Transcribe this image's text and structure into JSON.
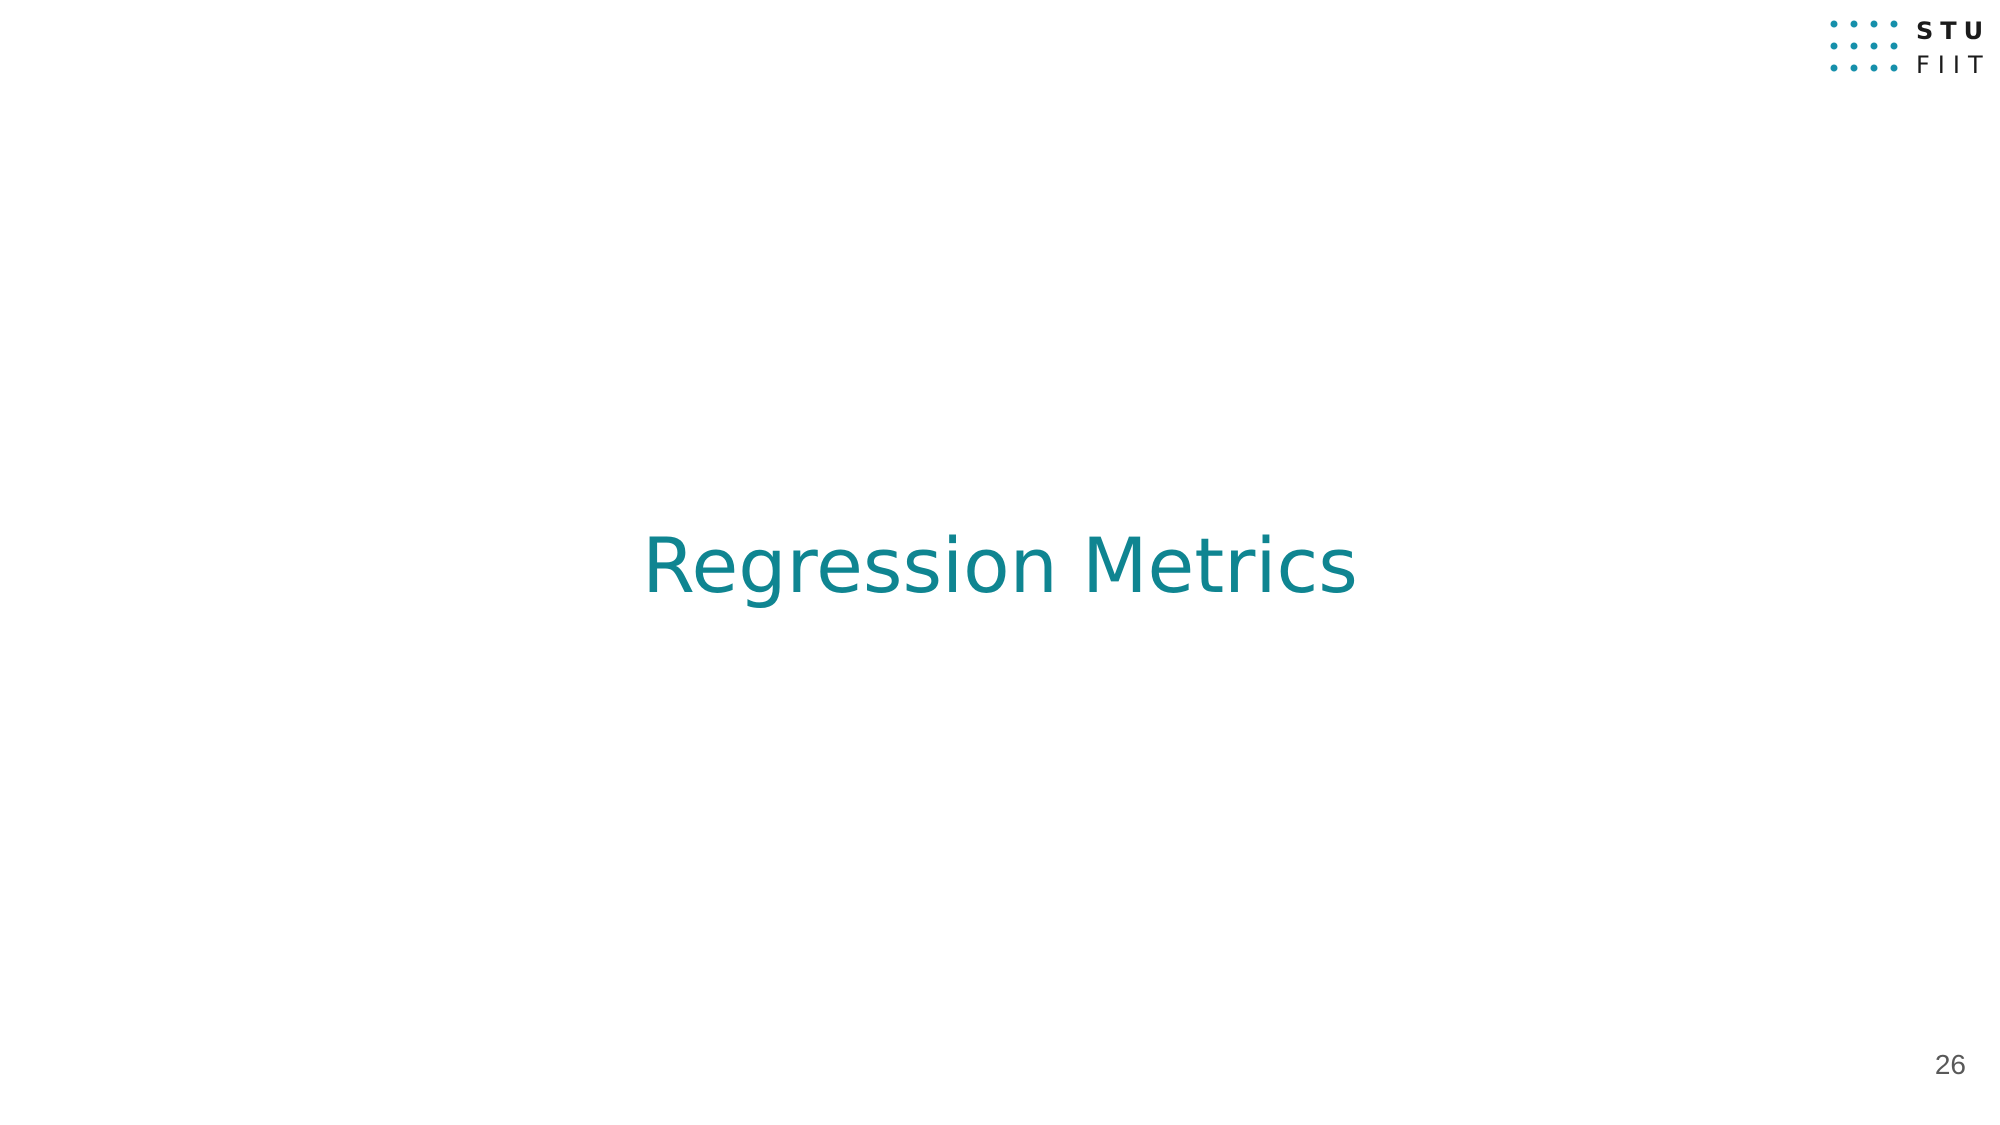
{
  "slide": {
    "title": "Regression Metrics",
    "page_number": "26"
  },
  "logo": {
    "line1": "STU",
    "line2": "FIIT",
    "icon": "dot-grid-icon",
    "dot_color": "#1690ab",
    "text_color": "#1b1b1b"
  },
  "colors": {
    "title": "#0f8591",
    "background": "#ffffff",
    "page_number": "#595959"
  }
}
